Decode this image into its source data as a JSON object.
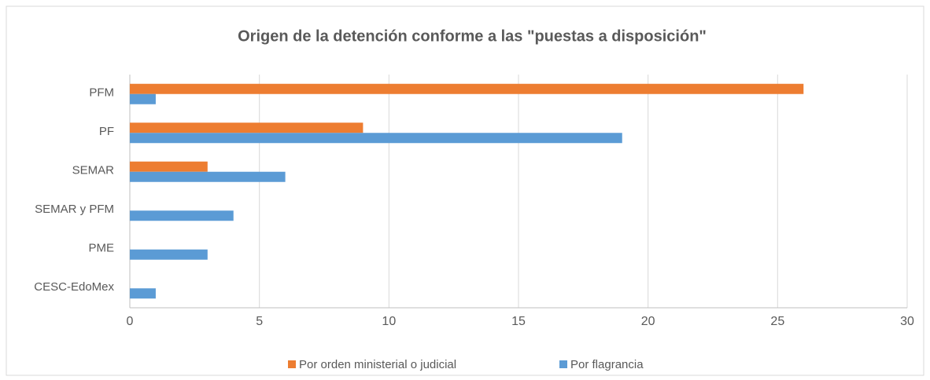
{
  "chart_data": {
    "type": "bar",
    "orientation": "horizontal",
    "title": "Origen de la detención conforme a las \"puestas a disposición\"",
    "categories": [
      "PFM",
      "PF",
      "SEMAR",
      "SEMAR y PFM",
      "PME",
      "CESC-EdoMex"
    ],
    "series": [
      {
        "name": "Por orden ministerial o judicial",
        "color": "#ed7d31",
        "values": [
          26,
          9,
          3,
          0,
          0,
          0
        ]
      },
      {
        "name": "Por flagrancia",
        "color": "#5b9bd5",
        "values": [
          1,
          19,
          6,
          4,
          3,
          1
        ]
      }
    ],
    "xlim": [
      0,
      30
    ],
    "xticks": [
      0,
      5,
      10,
      15,
      20,
      25,
      30
    ],
    "grid": true,
    "legend": "bottom"
  }
}
